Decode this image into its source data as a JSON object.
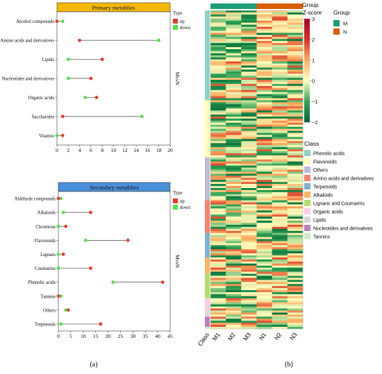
{
  "panel_labels": {
    "a": "(a)",
    "b": "(b)"
  },
  "colors": {
    "up": "#e8392b",
    "down": "#4de34a",
    "primary_header": "#f5b800",
    "secondary_header": "#4a90d9",
    "group_M": "#1b9e77",
    "group_N": "#d95f02"
  },
  "chart_data": [
    {
      "type": "dumbbell",
      "title": "Primary metablies",
      "side_label": "MvsN",
      "legend": {
        "title": "Type",
        "items": [
          "up",
          "down"
        ]
      },
      "xlim": [
        0,
        20
      ],
      "xticks": [
        0,
        2,
        4,
        6,
        8,
        10,
        12,
        14,
        16,
        18,
        20
      ],
      "categories": [
        "Alcohol compounds",
        "Amino acids and derivatives",
        "Lipids",
        "Nucleotides and derivatives",
        "Organic acids",
        "Saccharides",
        "Vitamin"
      ],
      "series": [
        {
          "name": "up",
          "values": [
            0,
            4,
            8,
            6,
            7,
            1,
            1
          ]
        },
        {
          "name": "down",
          "values": [
            1,
            18,
            2,
            2,
            5,
            15,
            0
          ]
        }
      ]
    },
    {
      "type": "dumbbell",
      "title": "Secondary metablies",
      "side_label": "MvsN",
      "legend": {
        "title": "Type",
        "items": [
          "up",
          "down"
        ]
      },
      "xlim": [
        0,
        45
      ],
      "xticks": [
        0,
        5,
        10,
        15,
        20,
        25,
        30,
        35,
        40,
        45
      ],
      "categories": [
        "Aldehyde compounds",
        "Alkaloids",
        "Chromone",
        "Flavonoids",
        "Lignans",
        "Coumarins",
        "Phenolic acids",
        "Tannins",
        "Others",
        "Terpenoids"
      ],
      "series": [
        {
          "name": "up",
          "values": [
            0,
            13,
            3,
            28,
            2,
            13,
            42,
            0,
            4,
            17
          ]
        },
        {
          "name": "down",
          "values": [
            1,
            2,
            0,
            11,
            0,
            0,
            22,
            1,
            3,
            1
          ]
        }
      ]
    },
    {
      "type": "heatmap",
      "columns": [
        "M1",
        "M2",
        "M3",
        "N1",
        "N2",
        "N3"
      ],
      "class_column_label": "Class",
      "group_legend": {
        "title": "Group",
        "items": [
          {
            "name": "M",
            "color": "#1b9e77"
          },
          {
            "name": "N",
            "color": "#d95f02"
          }
        ]
      },
      "column_groups": [
        "M",
        "M",
        "M",
        "N",
        "N",
        "N"
      ],
      "zscore_legend": {
        "title": "Z-score",
        "ticks": [
          3,
          2,
          1,
          0,
          -1,
          -2
        ],
        "range": [
          -2,
          3
        ]
      },
      "class_legend": {
        "title": "Class",
        "items": [
          {
            "name": "Phenolic acids",
            "color": "#8dd3c7"
          },
          {
            "name": "Flavonoids",
            "color": "#ffffb3"
          },
          {
            "name": "Others",
            "color": "#bebada"
          },
          {
            "name": "Amino acids and derivatives",
            "color": "#fb8072"
          },
          {
            "name": "Terpenoids",
            "color": "#80b1d3"
          },
          {
            "name": "Alkaloids",
            "color": "#fdb462"
          },
          {
            "name": "Lignans and Coumarins",
            "color": "#b3de69"
          },
          {
            "name": "Organic acids",
            "color": "#fccde5"
          },
          {
            "name": "Lipids",
            "color": "#d9d9d9"
          },
          {
            "name": "Nucleotides and derivatives",
            "color": "#bc80bd"
          },
          {
            "name": "Tannins",
            "color": "#ccebc5"
          }
        ]
      },
      "row_class_counts": [
        44,
        28,
        21,
        16,
        12,
        8,
        12,
        6,
        3,
        5,
        1
      ]
    }
  ]
}
